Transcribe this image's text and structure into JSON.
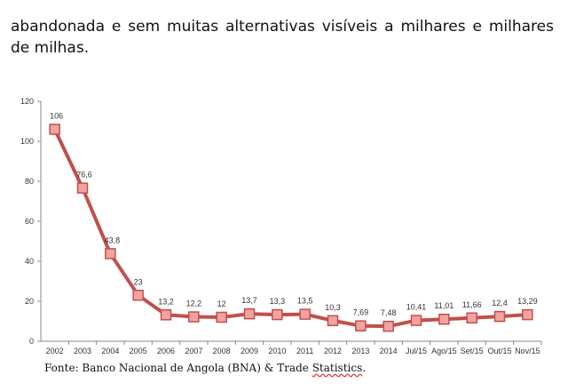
{
  "paragraph": {
    "text": "abandonada e sem muitas alternativas visíveis a milhares e milhares de milhas."
  },
  "source": {
    "prefix": "Fonte: Banco Nacional de Angola (BNA) & Trade ",
    "underlined": "Statistics",
    "suffix": "."
  },
  "colors": {
    "line": "#c0504d",
    "marker_fill": "#f2a3a1",
    "marker_stroke": "#c0504d",
    "axis": "#888888"
  },
  "chart_data": {
    "type": "line",
    "title": "",
    "xlabel": "",
    "ylabel": "",
    "ylim": [
      0,
      120
    ],
    "yticks": [
      0,
      20,
      40,
      60,
      80,
      100,
      120
    ],
    "grid": false,
    "legend": "none",
    "categories": [
      "2002",
      "2003",
      "2004",
      "2005",
      "2006",
      "2007",
      "2008",
      "2009",
      "2010",
      "2011",
      "2012",
      "2013",
      "2014",
      "Jul/15",
      "Ago/15",
      "Set/15",
      "Out/15",
      "Nov/15"
    ],
    "values": [
      106,
      76.6,
      43.8,
      23,
      13.2,
      12.2,
      12,
      13.7,
      13.3,
      13.5,
      10.3,
      7.69,
      7.48,
      10.41,
      11.01,
      11.66,
      12.4,
      13.29
    ],
    "data_labels": [
      "106",
      "76,6",
      "43,8",
      "23",
      "13,2",
      "12,2",
      "12",
      "13,7",
      "13,3",
      "13,5",
      "10,3",
      "7,69",
      "7,48",
      "10,41",
      "11,01",
      "11,66",
      "12,4",
      "13,29"
    ]
  }
}
